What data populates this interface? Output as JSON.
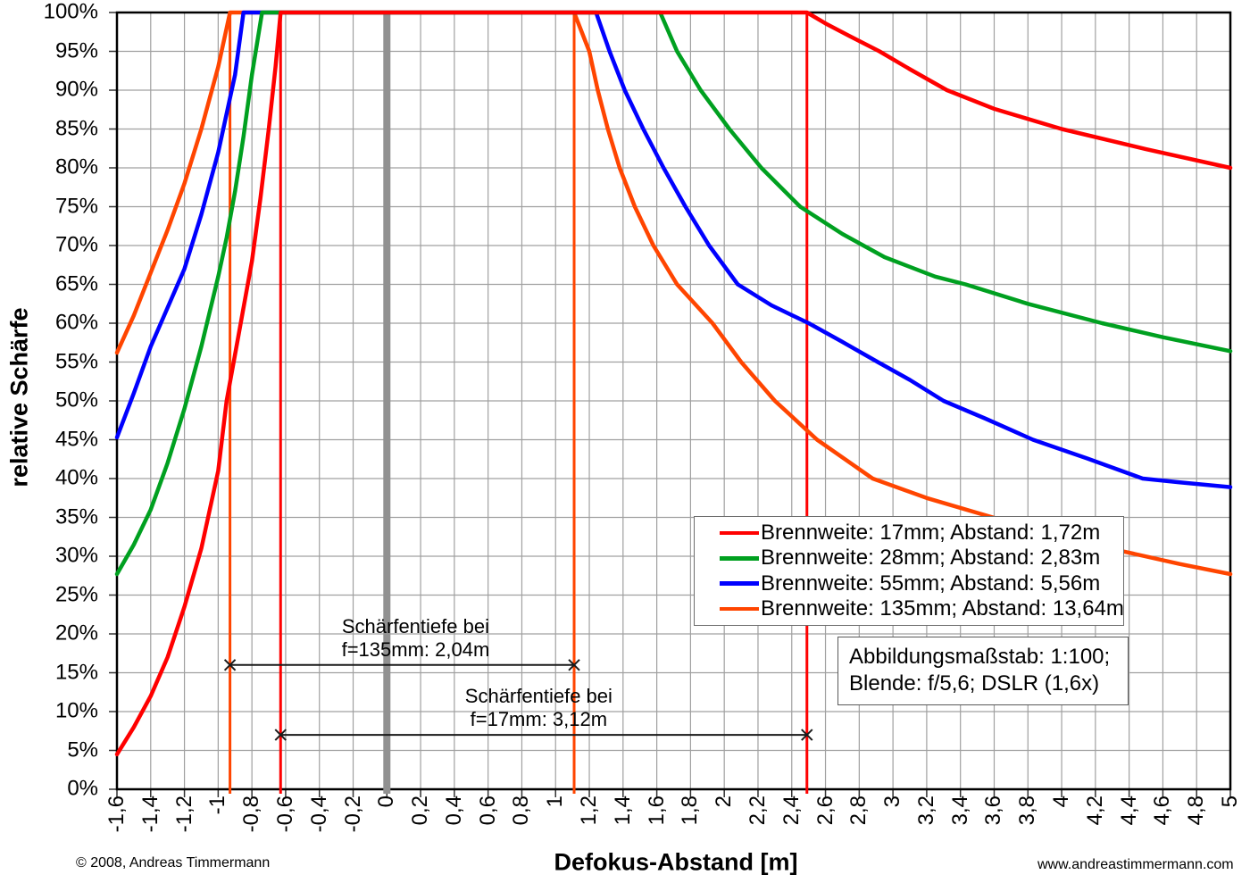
{
  "chart_data": {
    "type": "line",
    "title": "",
    "xlabel": "Defokus-Abstand [m]",
    "ylabel": "relative Schärfe",
    "xlim": [
      -1.6,
      5.0
    ],
    "ylim": [
      0,
      100
    ],
    "grid": "both",
    "legend_position": "inside-right-middle",
    "x_tick_labels": [
      "-1,6",
      "-1,4",
      "-1,2",
      "-1",
      "-0,8",
      "-0,6",
      "-0,4",
      "-0,2",
      "0",
      "0,2",
      "0,4",
      "0,6",
      "0,8",
      "1",
      "1,2",
      "1,4",
      "1,6",
      "1,8",
      "2",
      "2,2",
      "2,4",
      "2,6",
      "2,8",
      "3",
      "3,2",
      "3,4",
      "3,6",
      "3,8",
      "4",
      "4,2",
      "4,4",
      "4,6",
      "4,8",
      "5"
    ],
    "y_tick_labels": [
      "0%",
      "5%",
      "10%",
      "15%",
      "20%",
      "25%",
      "30%",
      "35%",
      "40%",
      "45%",
      "50%",
      "55%",
      "60%",
      "65%",
      "70%",
      "75%",
      "80%",
      "85%",
      "90%",
      "95%",
      "100%"
    ],
    "series": [
      {
        "id": "17mm",
        "name": "Brennweite: 17mm; Abstand: 1,72m",
        "color": "#ff0000",
        "points": [
          [
            -1.6,
            4.5
          ],
          [
            -1.5,
            8
          ],
          [
            -1.4,
            12
          ],
          [
            -1.3,
            17
          ],
          [
            -1.2,
            23.5
          ],
          [
            -1.1,
            31
          ],
          [
            -1,
            41
          ],
          [
            -0.95,
            50
          ],
          [
            -0.9,
            56
          ],
          [
            -0.8,
            68
          ],
          [
            -0.75,
            76
          ],
          [
            -0.7,
            85
          ],
          [
            -0.66,
            93
          ],
          [
            -0.63,
            100
          ],
          [
            2.49,
            100
          ],
          [
            2.6,
            98.6
          ],
          [
            2.74,
            97
          ],
          [
            2.92,
            95
          ],
          [
            3.1,
            92.7
          ],
          [
            3.32,
            90
          ],
          [
            3.6,
            87.6
          ],
          [
            4,
            85
          ],
          [
            4.5,
            82.4
          ],
          [
            5,
            80
          ]
        ]
      },
      {
        "id": "28mm",
        "name": "Brennweite: 28mm; Abstand: 2,83m",
        "color": "#00a020",
        "points": [
          [
            -1.6,
            27.7
          ],
          [
            -1.5,
            31.5
          ],
          [
            -1.4,
            36
          ],
          [
            -1.3,
            42
          ],
          [
            -1.2,
            49
          ],
          [
            -1.1,
            57
          ],
          [
            -1,
            66
          ],
          [
            -0.95,
            71
          ],
          [
            -0.9,
            77
          ],
          [
            -0.85,
            84
          ],
          [
            -0.8,
            92
          ],
          [
            -0.74,
            100
          ],
          [
            1.62,
            100
          ],
          [
            1.72,
            95
          ],
          [
            1.86,
            90
          ],
          [
            2.03,
            85
          ],
          [
            2.22,
            80
          ],
          [
            2.45,
            75
          ],
          [
            2.7,
            71.5
          ],
          [
            2.95,
            68.5
          ],
          [
            3.25,
            66
          ],
          [
            3.43,
            65
          ],
          [
            3.8,
            62.5
          ],
          [
            4.24,
            60
          ],
          [
            4.6,
            58.2
          ],
          [
            5,
            56.4
          ]
        ]
      },
      {
        "id": "55mm",
        "name": "Brennweite: 55mm; Abstand: 5,56m",
        "color": "#0000ff",
        "points": [
          [
            -1.6,
            45.3
          ],
          [
            -1.5,
            51
          ],
          [
            -1.4,
            57
          ],
          [
            -1.3,
            62
          ],
          [
            -1.2,
            67
          ],
          [
            -1.1,
            74
          ],
          [
            -1,
            82
          ],
          [
            -0.9,
            92
          ],
          [
            -0.85,
            100
          ],
          [
            1.24,
            100
          ],
          [
            1.32,
            95
          ],
          [
            1.41,
            90
          ],
          [
            1.52,
            85
          ],
          [
            1.64,
            80
          ],
          [
            1.77,
            75
          ],
          [
            1.91,
            70
          ],
          [
            2.08,
            65
          ],
          [
            2.28,
            62.3
          ],
          [
            2.5,
            60
          ],
          [
            2.7,
            57.6
          ],
          [
            2.91,
            55
          ],
          [
            3.1,
            52.7
          ],
          [
            3.3,
            50
          ],
          [
            3.55,
            47.7
          ],
          [
            3.83,
            45
          ],
          [
            4.15,
            42.6
          ],
          [
            4.48,
            40
          ],
          [
            4.7,
            39.5
          ],
          [
            5,
            38.9
          ]
        ]
      },
      {
        "id": "135mm",
        "name": "Brennweite: 135mm; Abstand: 13,64m",
        "color": "#ff4500",
        "points": [
          [
            -1.6,
            56.2
          ],
          [
            -1.5,
            61
          ],
          [
            -1.4,
            66.5
          ],
          [
            -1.3,
            72
          ],
          [
            -1.2,
            78
          ],
          [
            -1.1,
            85
          ],
          [
            -1,
            93
          ],
          [
            -0.93,
            100
          ],
          [
            1.11,
            100
          ],
          [
            1.2,
            95
          ],
          [
            1.25,
            90
          ],
          [
            1.31,
            85
          ],
          [
            1.38,
            80
          ],
          [
            1.47,
            75
          ],
          [
            1.58,
            70
          ],
          [
            1.72,
            65
          ],
          [
            1.93,
            60
          ],
          [
            2.1,
            55
          ],
          [
            2.3,
            50
          ],
          [
            2.55,
            45
          ],
          [
            2.88,
            40
          ],
          [
            3.2,
            37.5
          ],
          [
            3.67,
            34.5
          ],
          [
            4,
            32.7
          ],
          [
            4.37,
            30.6
          ],
          [
            4.7,
            29
          ],
          [
            5,
            27.7
          ]
        ]
      }
    ],
    "reference_lines": [
      {
        "name": "focus-plane-line",
        "x": 0,
        "color": "#919191",
        "width": 8
      },
      {
        "name": "dof-near-limit-135mm-line",
        "x": -0.93,
        "color": "#ff4500",
        "width": 3
      },
      {
        "name": "dof-far-limit-135mm-line",
        "x": 1.11,
        "color": "#ff4500",
        "width": 3
      },
      {
        "name": "dof-near-limit-17mm-line",
        "x": -0.63,
        "color": "#ff0000",
        "width": 3
      },
      {
        "name": "dof-far-limit-17mm-line",
        "x": 2.49,
        "color": "#ff0000",
        "width": 3
      }
    ],
    "annotations": [
      {
        "line1": "Schärfentiefe bei",
        "line2": "f=135mm: 2,04m",
        "x_start": -0.93,
        "x_end": 1.11,
        "y_pct": 16,
        "label_cx": 0.17
      },
      {
        "line1": "Schärfentiefe bei",
        "line2": "f=17mm: 3,12m",
        "x_start": -0.63,
        "x_end": 2.49,
        "y_pct": 7,
        "label_cx": 0.9
      }
    ]
  },
  "info_box": {
    "line1": "Abbildungsmaßstab: 1:100;",
    "line2": "Blende: f/5,6; DSLR (1,6x)"
  },
  "footer": {
    "left": "© 2008, Andreas Timmermann",
    "right": "www.andreastimmermann.com"
  }
}
